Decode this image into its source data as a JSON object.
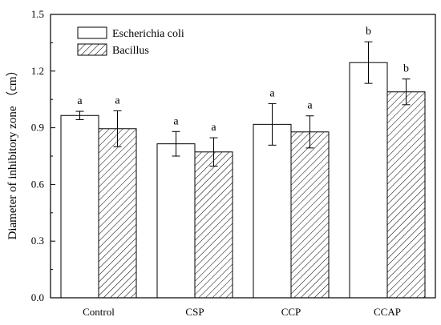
{
  "chart_data": {
    "type": "bar",
    "categories": [
      "Control",
      "CSP",
      "CCP",
      "CCAP"
    ],
    "series": [
      {
        "name": "Escherichia coli",
        "values": [
          0.965,
          0.815,
          0.918,
          1.245
        ],
        "errors": [
          0.022,
          0.065,
          0.11,
          0.11
        ],
        "letters": [
          "a",
          "a",
          "a",
          "b"
        ]
      },
      {
        "name": "Bacillus",
        "values": [
          0.895,
          0.772,
          0.878,
          1.09
        ],
        "errors": [
          0.095,
          0.075,
          0.085,
          0.068
        ],
        "letters": [
          "a",
          "a",
          "a",
          "b"
        ]
      }
    ],
    "xlabel": "",
    "ylabel": "Diameter of inhibitory zone （cm）",
    "ylim": [
      0,
      1.5
    ],
    "yticks": [
      "0.0",
      "0.3",
      "0.6",
      "0.9",
      "1.2",
      "1.5"
    ],
    "grid": false,
    "legend_position": "top-left"
  }
}
